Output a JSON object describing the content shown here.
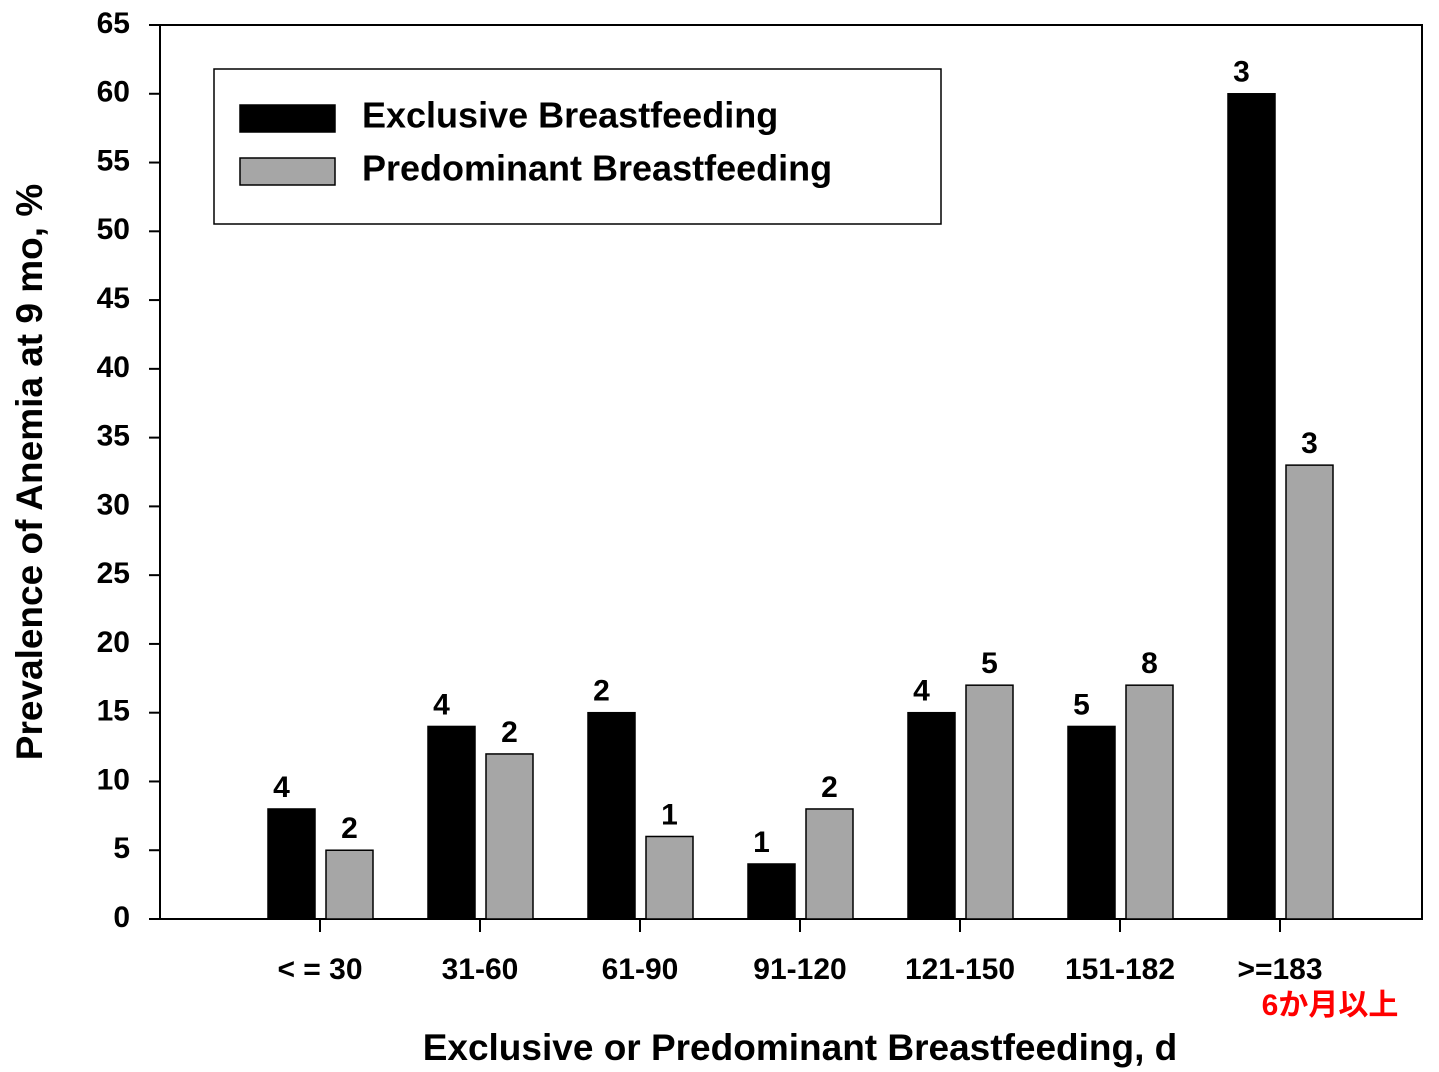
{
  "chart_data": {
    "type": "bar",
    "x_label": "Exclusive or Predominant Breastfeeding, d",
    "y_label": "Prevalence of Anemia at 9 mo, %",
    "categories": [
      "< = 30",
      "31-60",
      "61-90",
      "91-120",
      "121-150",
      "151-182",
      ">=183"
    ],
    "series": [
      {
        "name": "Exclusive Breastfeeding",
        "color": "#000000",
        "values": [
          8,
          14,
          15,
          4,
          15,
          14,
          60
        ],
        "counts": [
          4,
          4,
          2,
          1,
          4,
          5,
          3
        ]
      },
      {
        "name": "Predominant Breastfeeding",
        "color": "#a6a6a6",
        "values": [
          5,
          12,
          6,
          8,
          17,
          17,
          33
        ],
        "counts": [
          2,
          2,
          1,
          2,
          5,
          8,
          3
        ]
      }
    ],
    "annotations": [
      {
        "category": ">=183",
        "text": "6か月以上",
        "color": "#ff0000"
      }
    ],
    "ylim": [
      0,
      65
    ],
    "yticks": [
      0,
      5,
      10,
      15,
      20,
      25,
      30,
      35,
      40,
      45,
      50,
      55,
      60,
      65
    ],
    "legend": "upper left"
  }
}
